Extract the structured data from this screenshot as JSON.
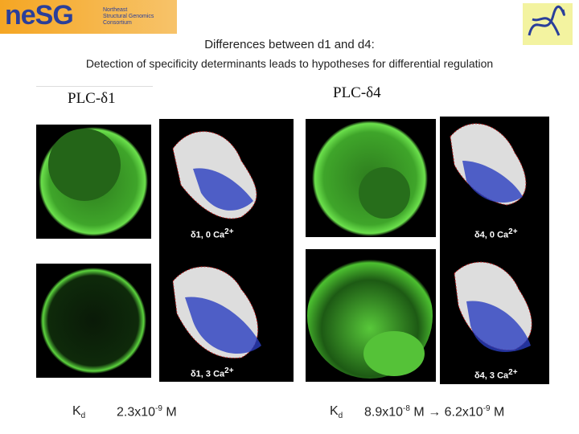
{
  "logo": {
    "mark": "neSG",
    "lines": [
      "Northeast",
      "Structural Genomics",
      "Consortium"
    ]
  },
  "title": "Differences between d1 and d4:",
  "subtitle": "Detection of specificity determinants leads to hypotheses for differential regulation",
  "panels": [
    {
      "heading": "PLC-δ1",
      "images": [
        {
          "label": "δ1, 0 Ca",
          "sup": "2+"
        },
        {
          "label": "δ1, 3 Ca",
          "sup": "2+"
        }
      ],
      "kd": {
        "symbol": "K",
        "subscript": "d",
        "values": [
          {
            "mantissa": "2.3x10",
            "exponent": "-9",
            "unit": "M"
          }
        ]
      }
    },
    {
      "heading": "PLC-δ4",
      "images": [
        {
          "label": "δ4, 0 Ca",
          "sup": "2+"
        },
        {
          "label": "δ4, 3 Ca",
          "sup": "2+"
        }
      ],
      "kd": {
        "symbol": "K",
        "subscript": "d",
        "arrow": "→",
        "values": [
          {
            "mantissa": "8.9x10",
            "exponent": "-8",
            "unit": "M"
          },
          {
            "mantissa": "6.2x10",
            "exponent": "-9",
            "unit": "M"
          }
        ]
      }
    }
  ]
}
